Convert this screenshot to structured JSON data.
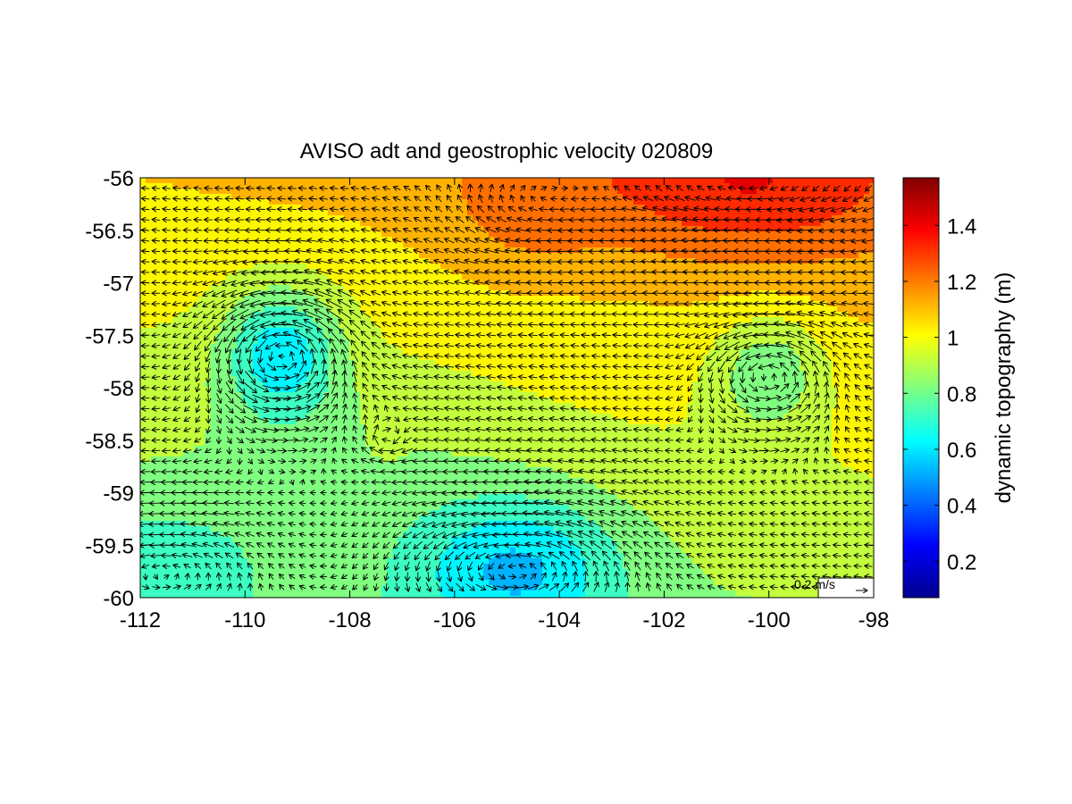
{
  "chart_data": {
    "type": "heatmap",
    "title": "AVISO adt and geostrophic velocity 020809",
    "xlim": [
      -112,
      -98
    ],
    "ylim": [
      -60,
      -56
    ],
    "x_ticks": [
      -112,
      -110,
      -108,
      -106,
      -104,
      -102,
      -100,
      -98
    ],
    "x_tick_labels": [
      "-112",
      "-110",
      "-108",
      "-106",
      "-104",
      "-102",
      "-100",
      "-98"
    ],
    "y_ticks": [
      -56,
      -56.5,
      -57,
      -57.5,
      -58,
      -58.5,
      -59,
      -59.5,
      -60
    ],
    "y_tick_labels": [
      "-56",
      "-56.5",
      "-57",
      "-57.5",
      "-58",
      "-58.5",
      "-59",
      "-59.5",
      "-60"
    ],
    "colorbar": {
      "label": "dynamic topography (m)",
      "range": [
        0.07,
        1.57
      ],
      "ticks": [
        0.2,
        0.4,
        0.6,
        0.8,
        1,
        1.2,
        1.4
      ],
      "tick_labels": [
        "0.2",
        "0.4",
        "0.6",
        "0.8",
        "1",
        "1.2",
        "1.4"
      ],
      "colormap": "jet"
    },
    "quiver_key": {
      "label": "0.2 m/s",
      "value": 0.2
    },
    "field_features": {
      "background_m": 0.98,
      "x_slope_m_per_deg": 0.007,
      "y_slope_m_per_deg": 0.07,
      "cyclonic_eddies": [
        {
          "lon": -109.3,
          "lat": -57.65,
          "adt_m": 0.72
        },
        {
          "lon": -100.0,
          "lat": -57.85,
          "adt_m": 0.8
        }
      ],
      "high_bands": [
        {
          "lon": -100.5,
          "lat": -56.1,
          "adt_m": 1.24
        },
        {
          "lon": -104.6,
          "lat": -56.3,
          "adt_m": 1.12
        }
      ],
      "low_region": {
        "lon": -104.8,
        "lat": -59.7,
        "adt_m": 0.62
      }
    },
    "grid": false
  }
}
